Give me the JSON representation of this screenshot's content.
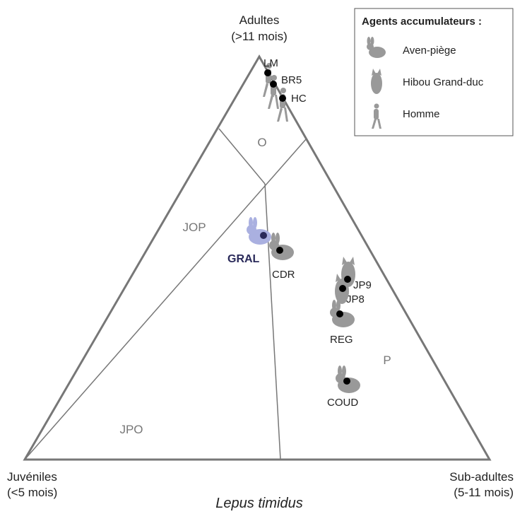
{
  "vertices": {
    "top": {
      "name": "Adultes",
      "range": "(>11 mois)"
    },
    "left": {
      "name": "Juvéniles",
      "range": "(<5 mois)"
    },
    "right": {
      "name": "Sub-adultes",
      "range": "(5-11 mois)"
    }
  },
  "caption": "Lepus timidus",
  "zones": [
    "O",
    "JOP",
    "P",
    "JPO"
  ],
  "legend": {
    "title": "Agents accumulateurs :",
    "items": [
      "Aven-piège",
      "Hibou Grand-duc",
      "Homme"
    ]
  },
  "sites": [
    "LM",
    "BR5",
    "HC",
    "GRAL",
    "CDR",
    "JP9",
    "JP8",
    "REG",
    "COUD"
  ]
}
